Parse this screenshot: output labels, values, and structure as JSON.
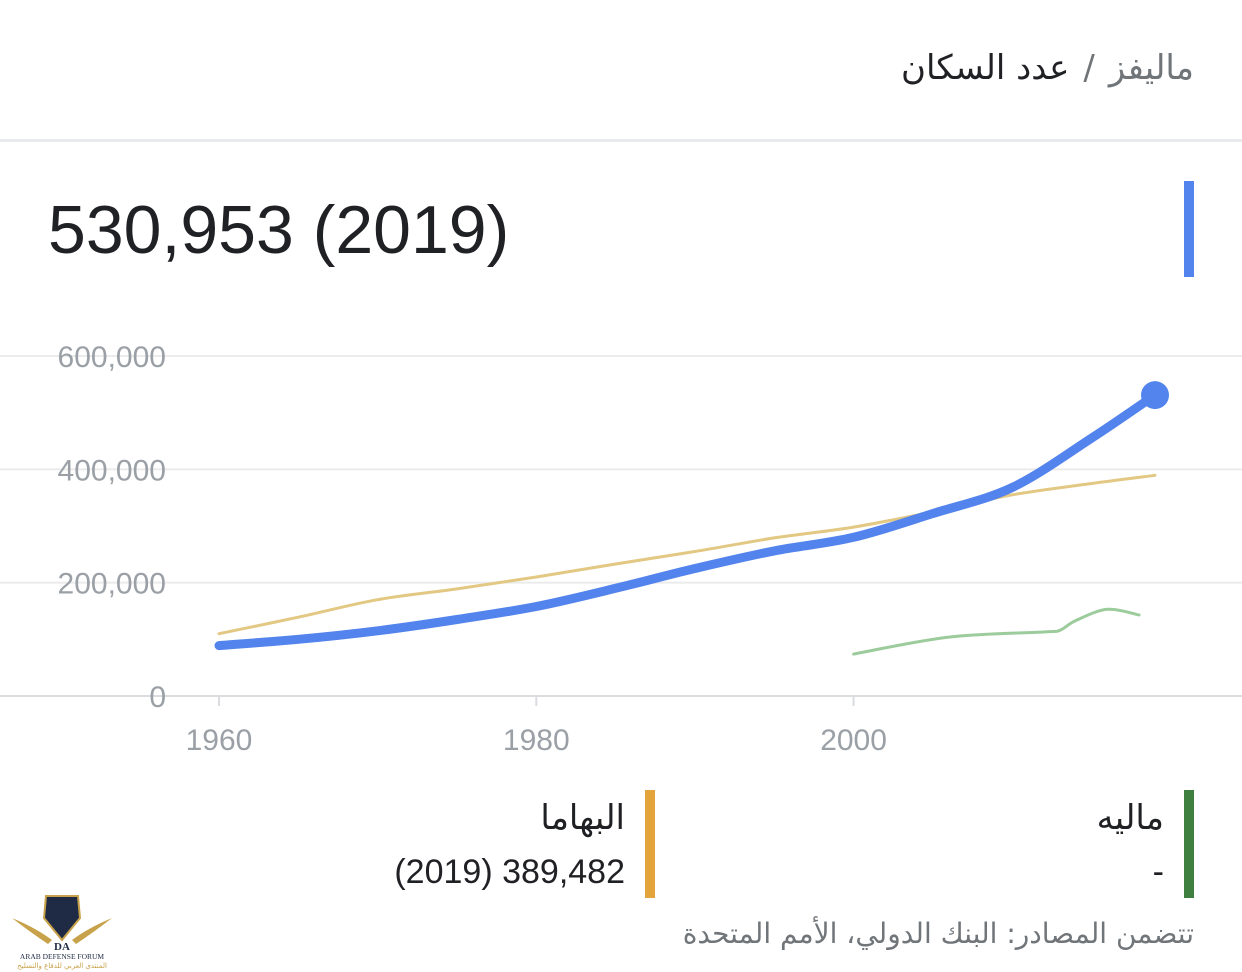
{
  "header": {
    "country": "ماليفز",
    "separator": "/",
    "metric": "عدد السكان"
  },
  "headline": {
    "value": "530,953 (2019)",
    "color": "#5383ec"
  },
  "chart_data": {
    "type": "line",
    "xlim": [
      1960,
      2019
    ],
    "ylim": [
      0,
      600000
    ],
    "x_ticks": [
      {
        "value": 1960,
        "label": "1960"
      },
      {
        "value": 1980,
        "label": "1980"
      },
      {
        "value": 2000,
        "label": "2000"
      }
    ],
    "y_ticks": [
      {
        "value": 0,
        "label": "0"
      },
      {
        "value": 200000,
        "label": "200,000"
      },
      {
        "value": 400000,
        "label": "400,000"
      },
      {
        "value": 600000,
        "label": "600,000"
      }
    ],
    "grid": true,
    "legend_position": "bottom",
    "series": [
      {
        "name": "",
        "color": "#5383ec",
        "emphasis": true,
        "x": [
          1960,
          1965,
          1970,
          1975,
          1980,
          1985,
          1990,
          1995,
          2000,
          2005,
          2010,
          2015,
          2019
        ],
        "values": [
          89000,
          100000,
          115000,
          135000,
          158000,
          190000,
          225000,
          256000,
          280000,
          322000,
          368000,
          455000,
          530953
        ]
      },
      {
        "name": "البهاما",
        "color": "#e2c882",
        "emphasis": false,
        "x": [
          1960,
          1965,
          1970,
          1975,
          1980,
          1985,
          1990,
          1995,
          2000,
          2005,
          2010,
          2015,
          2019
        ],
        "values": [
          110000,
          139000,
          170000,
          189000,
          210000,
          233000,
          255000,
          279000,
          298000,
          325000,
          355000,
          375000,
          389482
        ]
      },
      {
        "name": "ماليه",
        "color": "#9ccb9c",
        "emphasis": false,
        "x": [
          2000,
          2006,
          2012,
          2013,
          2014,
          2016,
          2018
        ],
        "values": [
          74000,
          104000,
          113000,
          116000,
          133000,
          153000,
          143000
        ]
      }
    ]
  },
  "legend": [
    {
      "name": "البهاما",
      "value": "(2019) 389,482",
      "color": "#e3a43b"
    },
    {
      "name": "ماليه",
      "value": "-",
      "color": "#3f7f3f"
    }
  ],
  "source": "تتضمن المصادر: البنك الدولي، الأمم المتحدة",
  "watermark": {
    "text_en": "ARAB DEFENSE FORUM",
    "text_ar": "المنتدى العربي للدفاع والتسليح",
    "logo_letters": "DA"
  }
}
